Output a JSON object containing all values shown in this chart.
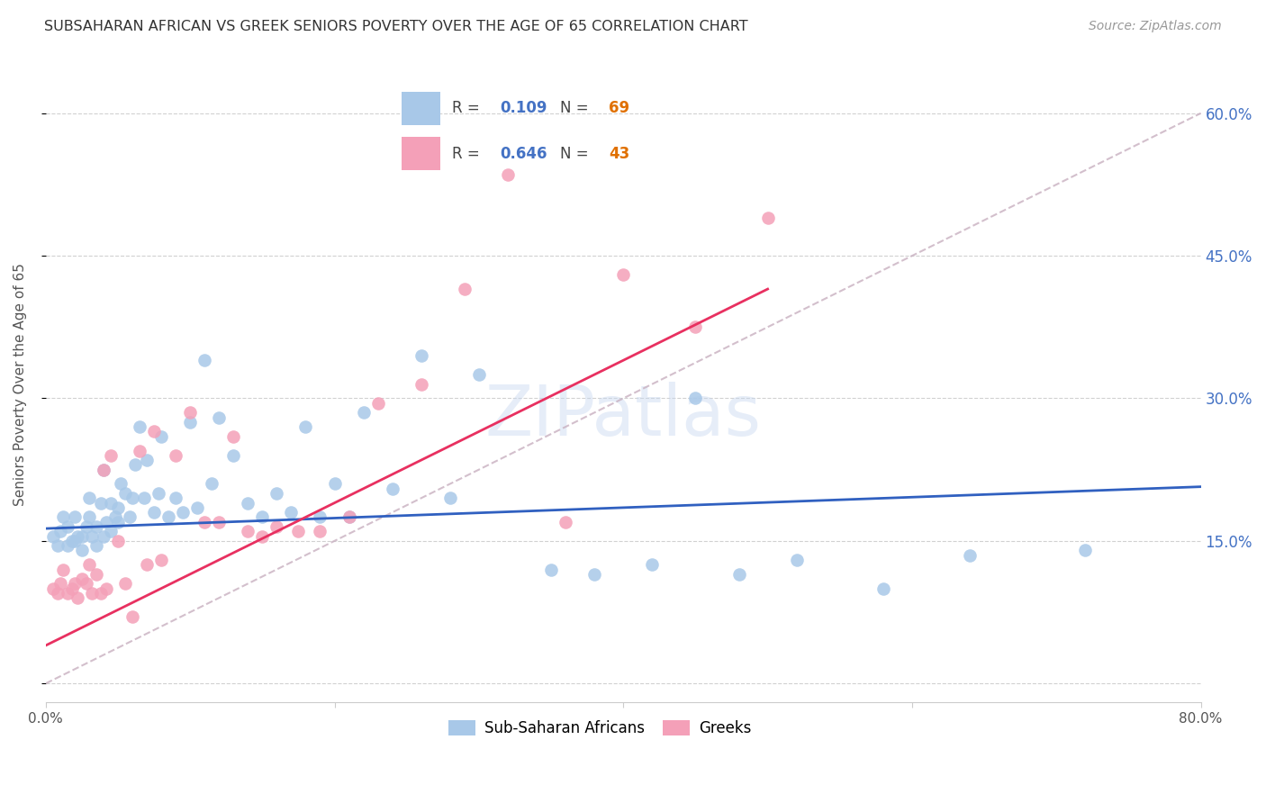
{
  "title": "SUBSAHARAN AFRICAN VS GREEK SENIORS POVERTY OVER THE AGE OF 65 CORRELATION CHART",
  "source": "Source: ZipAtlas.com",
  "ylabel": "Seniors Poverty Over the Age of 65",
  "xlim": [
    0.0,
    0.8
  ],
  "ylim": [
    -0.02,
    0.65
  ],
  "yticks": [
    0.0,
    0.15,
    0.3,
    0.45,
    0.6
  ],
  "xticks": [
    0.0,
    0.2,
    0.4,
    0.6,
    0.8
  ],
  "blue_R": 0.109,
  "blue_N": 69,
  "pink_R": 0.646,
  "pink_N": 43,
  "blue_color": "#A8C8E8",
  "pink_color": "#F4A0B8",
  "blue_line_color": "#3060C0",
  "pink_line_color": "#E83060",
  "diag_line_color": "#C8B0C0",
  "blue_line_x0": 0.0,
  "blue_line_y0": 0.163,
  "blue_line_x1": 0.8,
  "blue_line_y1": 0.207,
  "pink_line_x0": 0.0,
  "pink_line_y0": 0.04,
  "pink_line_x1": 0.5,
  "pink_line_y1": 0.415,
  "blue_scatter_x": [
    0.005,
    0.008,
    0.01,
    0.012,
    0.015,
    0.015,
    0.018,
    0.02,
    0.02,
    0.022,
    0.025,
    0.025,
    0.028,
    0.03,
    0.03,
    0.032,
    0.035,
    0.035,
    0.038,
    0.04,
    0.04,
    0.042,
    0.045,
    0.045,
    0.048,
    0.05,
    0.05,
    0.052,
    0.055,
    0.058,
    0.06,
    0.062,
    0.065,
    0.068,
    0.07,
    0.075,
    0.078,
    0.08,
    0.085,
    0.09,
    0.095,
    0.1,
    0.105,
    0.11,
    0.115,
    0.12,
    0.13,
    0.14,
    0.15,
    0.16,
    0.17,
    0.18,
    0.19,
    0.2,
    0.21,
    0.22,
    0.24,
    0.26,
    0.28,
    0.3,
    0.35,
    0.38,
    0.42,
    0.45,
    0.48,
    0.52,
    0.58,
    0.64,
    0.72
  ],
  "blue_scatter_y": [
    0.155,
    0.145,
    0.16,
    0.175,
    0.145,
    0.165,
    0.15,
    0.15,
    0.175,
    0.155,
    0.14,
    0.155,
    0.165,
    0.175,
    0.195,
    0.155,
    0.145,
    0.165,
    0.19,
    0.155,
    0.225,
    0.17,
    0.16,
    0.19,
    0.175,
    0.17,
    0.185,
    0.21,
    0.2,
    0.175,
    0.195,
    0.23,
    0.27,
    0.195,
    0.235,
    0.18,
    0.2,
    0.26,
    0.175,
    0.195,
    0.18,
    0.275,
    0.185,
    0.34,
    0.21,
    0.28,
    0.24,
    0.19,
    0.175,
    0.2,
    0.18,
    0.27,
    0.175,
    0.21,
    0.175,
    0.285,
    0.205,
    0.345,
    0.195,
    0.325,
    0.12,
    0.115,
    0.125,
    0.3,
    0.115,
    0.13,
    0.1,
    0.135,
    0.14
  ],
  "pink_scatter_x": [
    0.005,
    0.008,
    0.01,
    0.012,
    0.015,
    0.018,
    0.02,
    0.022,
    0.025,
    0.028,
    0.03,
    0.032,
    0.035,
    0.038,
    0.04,
    0.042,
    0.045,
    0.05,
    0.055,
    0.06,
    0.065,
    0.07,
    0.075,
    0.08,
    0.09,
    0.1,
    0.11,
    0.12,
    0.13,
    0.14,
    0.15,
    0.16,
    0.175,
    0.19,
    0.21,
    0.23,
    0.26,
    0.29,
    0.32,
    0.36,
    0.4,
    0.45,
    0.5
  ],
  "pink_scatter_y": [
    0.1,
    0.095,
    0.105,
    0.12,
    0.095,
    0.1,
    0.105,
    0.09,
    0.11,
    0.105,
    0.125,
    0.095,
    0.115,
    0.095,
    0.225,
    0.1,
    0.24,
    0.15,
    0.105,
    0.07,
    0.245,
    0.125,
    0.265,
    0.13,
    0.24,
    0.285,
    0.17,
    0.17,
    0.26,
    0.16,
    0.155,
    0.165,
    0.16,
    0.16,
    0.175,
    0.295,
    0.315,
    0.415,
    0.535,
    0.17,
    0.43,
    0.375,
    0.49
  ]
}
